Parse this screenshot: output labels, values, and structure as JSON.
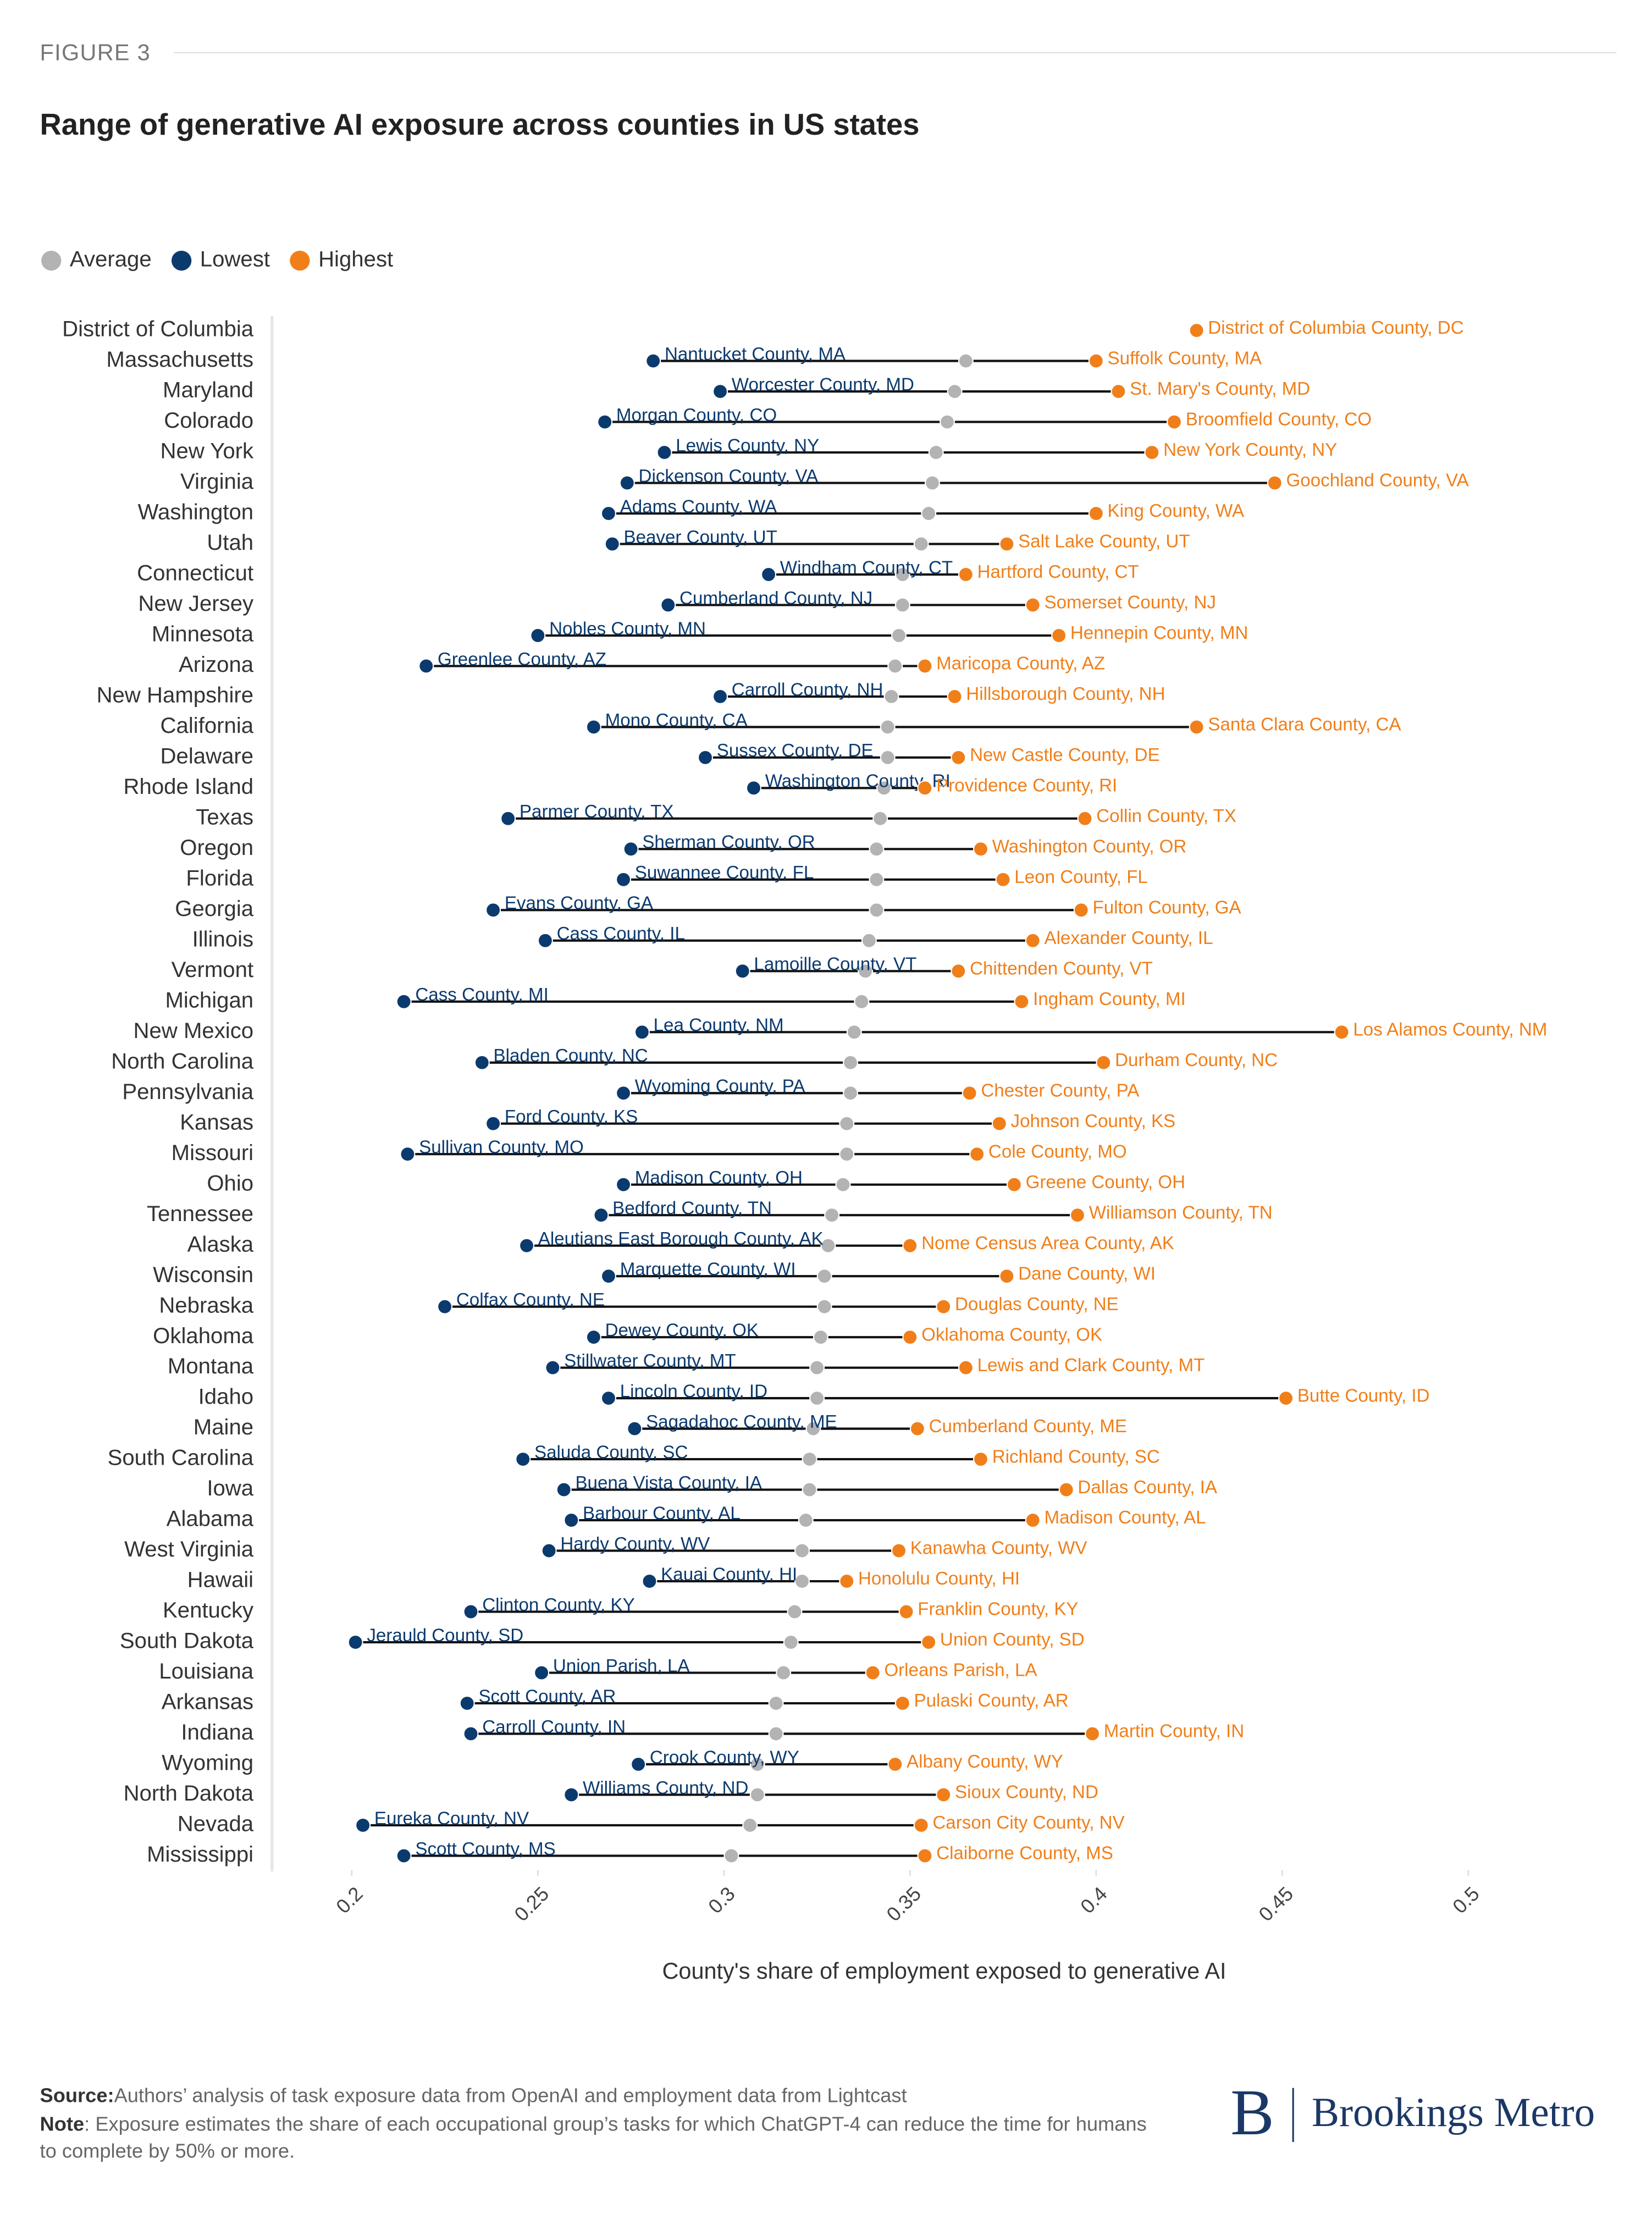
{
  "chart_data": {
    "type": "dumbbell",
    "figure_label": "FIGURE 3",
    "title": "Range of generative AI exposure across counties in US states",
    "x_label": "County's share of employment exposed to generative AI",
    "xlim": [
      0.2,
      0.5
    ],
    "xticks": [
      0.2,
      0.25,
      0.3,
      0.35,
      0.4,
      0.45,
      0.5
    ],
    "categories": [
      "District of Columbia",
      "Massachusetts",
      "Maryland",
      "Colorado",
      "New York",
      "Virginia",
      "Washington",
      "Utah",
      "Connecticut",
      "New Jersey",
      "Minnesota",
      "Arizona",
      "New Hampshire",
      "California",
      "Delaware",
      "Rhode Island",
      "Texas",
      "Oregon",
      "Florida",
      "Georgia",
      "Illinois",
      "Vermont",
      "Michigan",
      "New Mexico",
      "North Carolina",
      "Pennsylvania",
      "Kansas",
      "Missouri",
      "Ohio",
      "Tennessee",
      "Alaska",
      "Wisconsin",
      "Nebraska",
      "Oklahoma",
      "Montana",
      "Idaho",
      "Maine",
      "South Carolina",
      "Iowa",
      "Alabama",
      "West Virginia",
      "Hawaii",
      "Kentucky",
      "South Dakota",
      "Louisiana",
      "Arkansas",
      "Indiana",
      "Wyoming",
      "North Dakota",
      "Nevada",
      "Mississippi"
    ],
    "series": [
      {
        "name": "Average",
        "color": "#b3b3b3",
        "values": [
          null,
          0.365,
          0.362,
          0.36,
          0.357,
          0.356,
          0.355,
          0.353,
          0.348,
          0.348,
          0.347,
          0.346,
          0.345,
          0.344,
          0.344,
          0.343,
          0.342,
          0.341,
          0.341,
          0.341,
          0.339,
          0.338,
          0.337,
          0.335,
          0.334,
          0.334,
          0.333,
          0.333,
          0.332,
          0.329,
          0.328,
          0.327,
          0.327,
          0.326,
          0.325,
          0.325,
          0.324,
          0.323,
          0.323,
          0.322,
          0.321,
          0.321,
          0.319,
          0.318,
          0.316,
          0.314,
          0.314,
          0.309,
          0.309,
          0.307,
          0.302
        ]
      },
      {
        "name": "Lowest",
        "color": "#0b3a6e",
        "values": [
          null,
          0.281,
          0.299,
          0.268,
          0.284,
          0.274,
          0.269,
          0.27,
          0.312,
          0.285,
          0.25,
          0.22,
          0.299,
          0.265,
          0.295,
          0.308,
          0.242,
          0.275,
          0.273,
          0.238,
          0.252,
          0.305,
          0.214,
          0.278,
          0.235,
          0.273,
          0.238,
          0.215,
          0.273,
          0.267,
          0.247,
          0.269,
          0.225,
          0.265,
          0.254,
          0.269,
          0.276,
          0.246,
          0.257,
          0.259,
          0.253,
          0.28,
          0.232,
          0.201,
          0.251,
          0.231,
          0.232,
          0.277,
          0.259,
          0.203,
          0.214
        ],
        "point_labels": [
          null,
          "Nantucket County, MA",
          "Worcester County, MD",
          "Morgan County, CO",
          "Lewis County, NY",
          "Dickenson County, VA",
          "Adams County, WA",
          "Beaver County, UT",
          "Windham County, CT",
          "Cumberland County, NJ",
          "Nobles County, MN",
          "Greenlee County, AZ",
          "Carroll County, NH",
          "Mono County, CA",
          "Sussex County, DE",
          "Washington County, RI",
          "Parmer County, TX",
          "Sherman County, OR",
          "Suwannee County, FL",
          "Evans County, GA",
          "Cass County, IL",
          "Lamoille County, VT",
          "Cass County, MI",
          "Lea County, NM",
          "Bladen County, NC",
          "Wyoming County, PA",
          "Ford County, KS",
          "Sullivan County, MO",
          "Madison County, OH",
          "Bedford County, TN",
          "Aleutians East Borough County, AK",
          "Marquette County, WI",
          "Colfax County, NE",
          "Dewey County, OK",
          "Stillwater County, MT",
          "Lincoln County, ID",
          "Sagadahoc County, ME",
          "Saluda County, SC",
          "Buena Vista County, IA",
          "Barbour County, AL",
          "Hardy County, WV",
          "Kauai County, HI",
          "Clinton County, KY",
          "Jerauld County, SD",
          "Union Parish, LA",
          "Scott County, AR",
          "Carroll County, IN",
          "Crook County, WY",
          "Williams County, ND",
          "Eureka County, NV",
          "Scott County, MS"
        ]
      },
      {
        "name": "Highest",
        "color": "#f07f1a",
        "values": [
          0.427,
          0.4,
          0.406,
          0.421,
          0.415,
          0.448,
          0.4,
          0.376,
          0.365,
          0.383,
          0.39,
          0.354,
          0.362,
          0.427,
          0.363,
          0.354,
          0.397,
          0.369,
          0.375,
          0.396,
          0.383,
          0.363,
          0.38,
          0.466,
          0.402,
          0.366,
          0.374,
          0.368,
          0.378,
          0.395,
          0.35,
          0.376,
          0.359,
          0.35,
          0.365,
          0.451,
          0.352,
          0.369,
          0.392,
          0.383,
          0.347,
          0.333,
          0.349,
          0.355,
          0.34,
          0.348,
          0.399,
          0.346,
          0.359,
          0.353,
          0.354
        ],
        "point_labels": [
          "District of Columbia County, DC",
          "Suffolk County, MA",
          "St. Mary's County, MD",
          "Broomfield County, CO",
          "New York County, NY",
          "Goochland County, VA",
          "King County, WA",
          "Salt Lake County, UT",
          "Hartford County, CT",
          "Somerset County, NJ",
          "Hennepin County, MN",
          "Maricopa County, AZ",
          "Hillsborough County, NH",
          "Santa Clara County, CA",
          "New Castle County, DE",
          "Providence County, RI",
          "Collin County, TX",
          "Washington County, OR",
          "Leon County, FL",
          "Fulton County, GA",
          "Alexander County, IL",
          "Chittenden County, VT",
          "Ingham County, MI",
          "Los Alamos County, NM",
          "Durham County, NC",
          "Chester County, PA",
          "Johnson County, KS",
          "Cole County, MO",
          "Greene County, OH",
          "Williamson County, TN",
          "Nome Census Area County, AK",
          "Dane County, WI",
          "Douglas County, NE",
          "Oklahoma County, OK",
          "Lewis and Clark County, MT",
          "Butte County, ID",
          "Cumberland County, ME",
          "Richland County, SC",
          "Dallas County, IA",
          "Madison County, AL",
          "Kanawha County, WV",
          "Honolulu County, HI",
          "Franklin County, KY",
          "Union County, SD",
          "Orleans Parish, LA",
          "Pulaski County, AR",
          "Martin County, IN",
          "Albany County, WY",
          "Sioux County, ND",
          "Carson City County, NV",
          "Claiborne County, MS"
        ]
      }
    ],
    "source_label": "Source:",
    "source": "Authors’ analysis of task exposure data from OpenAI and employment data from Lightcast",
    "note_label": "Note",
    "note": ": Exposure estimates the share of each occupational group’s tasks for which ChatGPT-4 can reduce the time for humans to complete by 50% or more.",
    "logo_mark": "B",
    "logo_text": "Brookings Metro"
  }
}
